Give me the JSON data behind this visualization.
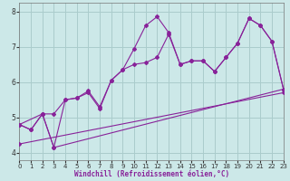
{
  "background_color": "#cce8e8",
  "grid_color": "#aacccc",
  "line_color": "#882299",
  "xlim": [
    0,
    23
  ],
  "ylim": [
    3.8,
    8.25
  ],
  "xticks": [
    0,
    1,
    2,
    3,
    4,
    5,
    6,
    7,
    8,
    9,
    10,
    11,
    12,
    13,
    14,
    15,
    16,
    17,
    18,
    19,
    20,
    21,
    22,
    23
  ],
  "yticks": [
    4,
    5,
    6,
    7,
    8
  ],
  "xlabel": "Windchill (Refroidissement éolien,°C)",
  "series": [
    {
      "x": [
        0,
        1,
        2,
        3,
        4,
        5,
        6,
        7,
        8,
        9,
        10,
        11,
        12,
        13,
        14,
        15,
        16,
        17,
        18,
        19,
        20,
        21,
        22,
        23
      ],
      "y": [
        4.8,
        4.65,
        5.1,
        5.1,
        5.5,
        5.55,
        5.75,
        5.3,
        6.05,
        6.35,
        6.95,
        7.6,
        7.85,
        7.4,
        6.5,
        6.6,
        6.6,
        6.3,
        6.7,
        7.1,
        7.8,
        7.6,
        7.15,
        5.8
      ]
    },
    {
      "x": [
        0,
        1,
        2,
        3,
        4,
        5,
        6,
        7,
        8,
        9,
        10,
        11,
        12,
        13,
        14,
        15,
        16,
        17,
        18,
        19,
        20,
        21,
        22,
        23
      ],
      "y": [
        4.8,
        4.65,
        5.1,
        4.15,
        5.5,
        5.55,
        5.7,
        5.25,
        6.05,
        6.35,
        6.5,
        6.55,
        6.7,
        7.35,
        6.5,
        6.6,
        6.6,
        6.3,
        6.7,
        7.1,
        7.8,
        7.6,
        7.15,
        5.8
      ]
    },
    {
      "x": [
        0,
        2,
        3,
        23
      ],
      "y": [
        4.8,
        5.1,
        4.15,
        5.8
      ]
    },
    {
      "x": [
        0,
        23
      ],
      "y": [
        4.25,
        5.7
      ]
    }
  ]
}
